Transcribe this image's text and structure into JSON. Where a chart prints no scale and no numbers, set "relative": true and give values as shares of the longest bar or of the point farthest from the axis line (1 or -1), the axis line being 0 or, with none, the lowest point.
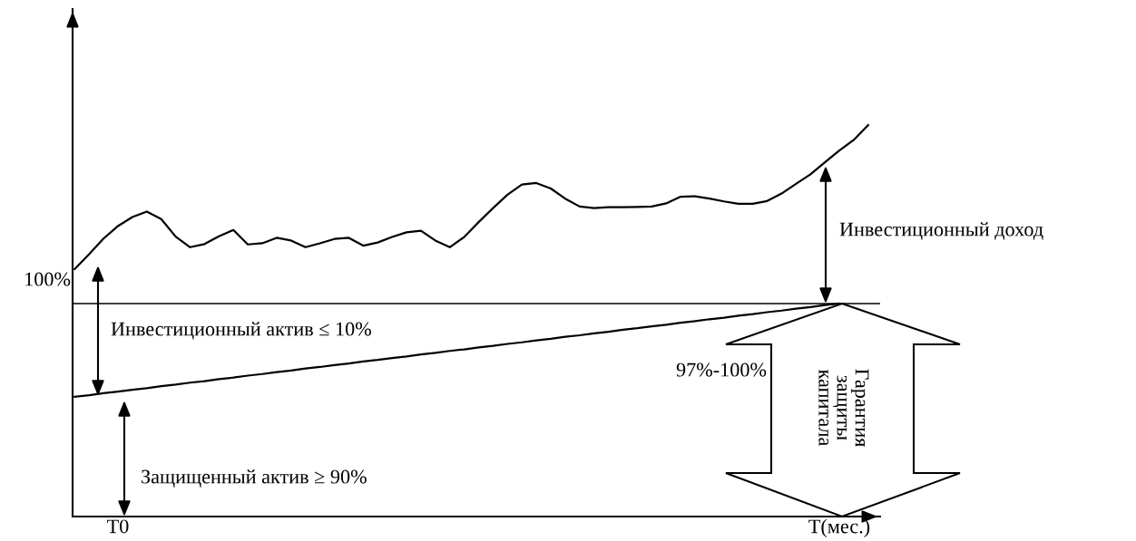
{
  "chart_data": {
    "type": "line",
    "relative": true,
    "categories": [
      null,
      null,
      null,
      "T0",
      null,
      null,
      null,
      null,
      null,
      null,
      null,
      null,
      null,
      null,
      null,
      null,
      null,
      null,
      null,
      null,
      null,
      null,
      null,
      null,
      null,
      null,
      null,
      null,
      null,
      null,
      null,
      null,
      null,
      null,
      null,
      null,
      null,
      null,
      null,
      null,
      null,
      null,
      null,
      null,
      null,
      null,
      null,
      null,
      null,
      null,
      null,
      null,
      null,
      "T(мес.)",
      null,
      null
    ],
    "series": [
      {
        "color": "#000000",
        "values": [
          0.632,
          0.67,
          0.71,
          0.742,
          0.765,
          0.779,
          0.76,
          0.715,
          0.688,
          0.696,
          0.716,
          0.732,
          0.695,
          0.698,
          0.712,
          0.705,
          0.688,
          0.698,
          0.709,
          0.712,
          0.692,
          0.7,
          0.714,
          0.726,
          0.73,
          0.705,
          0.688,
          0.714,
          0.752,
          0.788,
          0.822,
          0.848,
          0.852,
          0.838,
          0.812,
          0.792,
          0.788,
          0.79,
          0.79,
          0.791,
          0.792,
          0.8,
          0.817,
          0.818,
          0.812,
          0.805,
          0.799,
          0.799,
          0.806,
          0.825,
          0.85,
          0.874,
          0.905,
          0.935,
          0.962,
          1.0
        ]
      },
      {
        "color": "#000000",
        "values": [
          0.306,
          0.31,
          0.315,
          0.319,
          0.324,
          0.328,
          0.333,
          0.337,
          0.342,
          0.346,
          0.351,
          0.355,
          0.36,
          0.364,
          0.369,
          0.373,
          0.378,
          0.382,
          0.387,
          0.391,
          0.396,
          0.4,
          0.405,
          0.409,
          0.414,
          0.418,
          0.423,
          0.427,
          0.432,
          0.436,
          0.441,
          0.445,
          0.45,
          0.454,
          0.459,
          0.463,
          0.468,
          0.472,
          0.477,
          0.481,
          0.486,
          0.49,
          0.495,
          0.499,
          0.504,
          0.508,
          0.513,
          0.517,
          0.522,
          0.526,
          0.531,
          0.535,
          0.54,
          0.544,
          null,
          null
        ]
      }
    ],
    "ref_lines": [
      {
        "axis": "y",
        "value": 0.544,
        "color": "#000000"
      }
    ],
    "annotations": [
      "100%",
      "Инвестиционный доход",
      "Инвестиционный актив ≤ 10%",
      "Защищенный актив ≥ 90%",
      "97%-100%",
      "Гарантия\nзащиты\nкапитала"
    ],
    "grid": false,
    "legend": false,
    "marker": "none",
    "line_style": "solid"
  }
}
